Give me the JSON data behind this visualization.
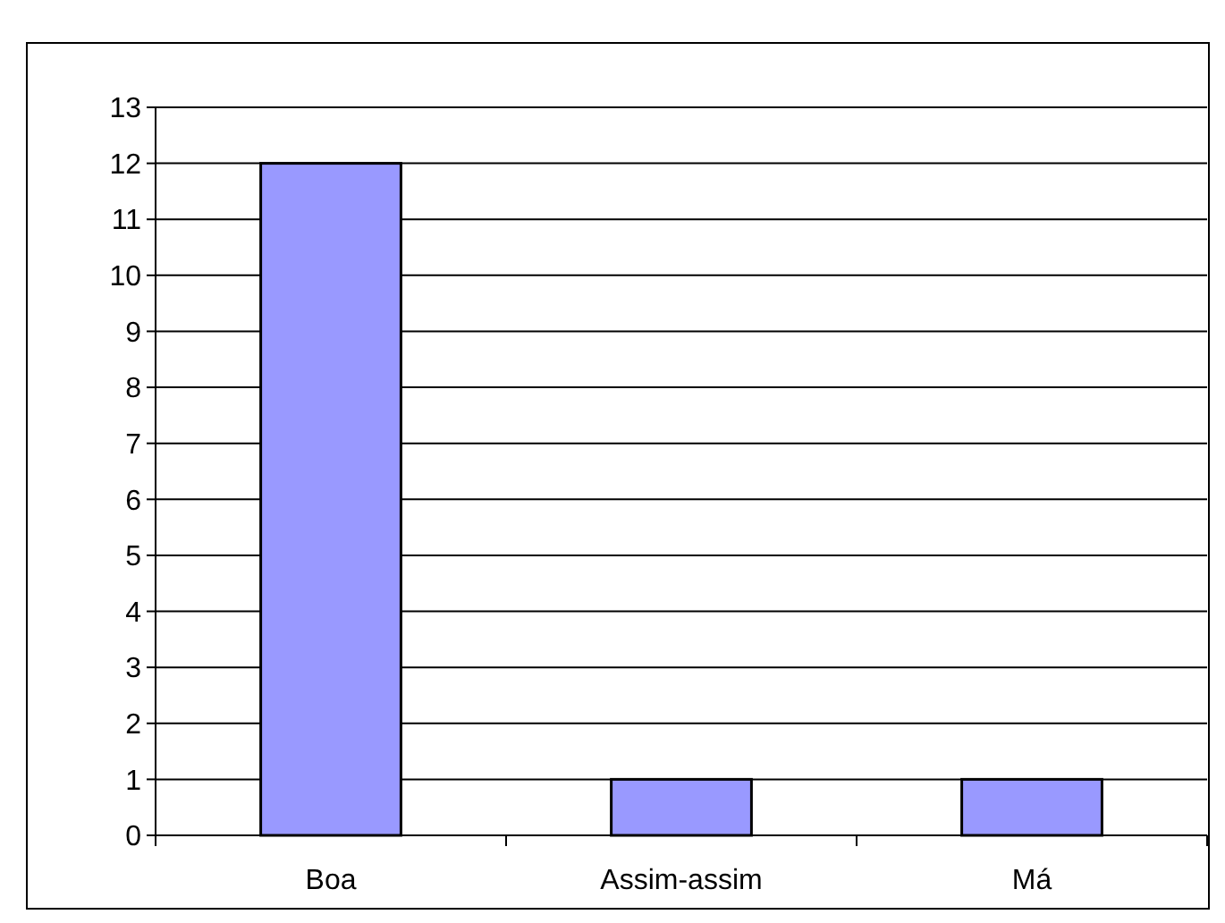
{
  "chart_data": {
    "type": "bar",
    "categories": [
      "Boa",
      "Assim-assim",
      "Má"
    ],
    "values": [
      12,
      1,
      1
    ],
    "color": "#9999ff",
    "ylim": [
      0,
      13
    ],
    "yticks": [
      0,
      1,
      2,
      3,
      4,
      5,
      6,
      7,
      8,
      9,
      10,
      11,
      12,
      13
    ],
    "grid": "y"
  }
}
